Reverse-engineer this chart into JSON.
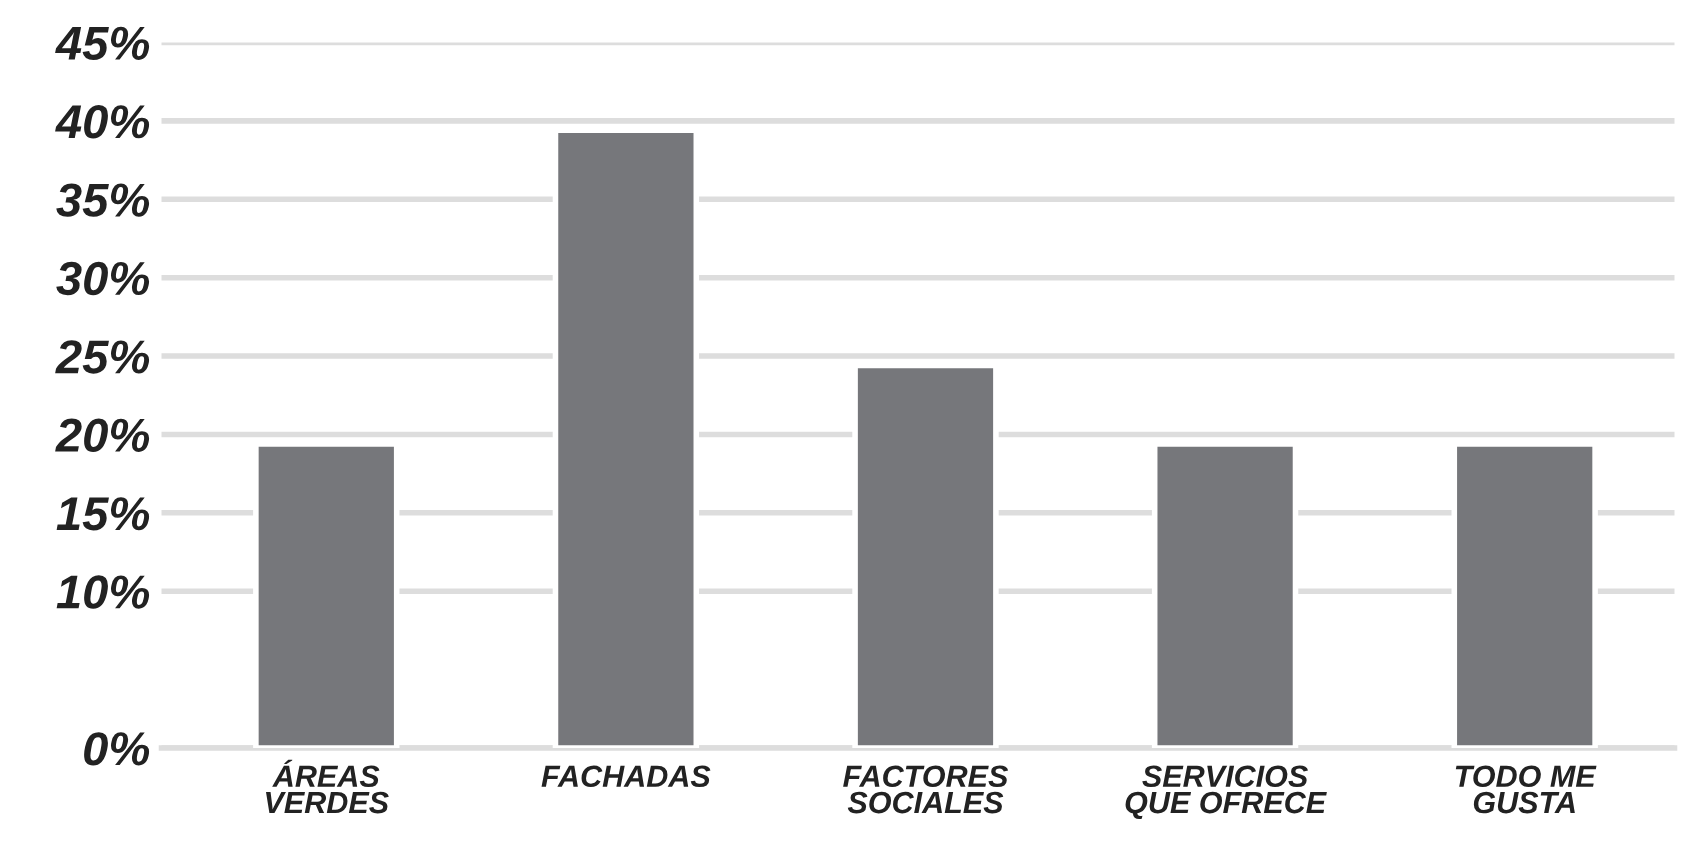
{
  "chart_data": {
    "type": "bar",
    "categories": [
      "ÁREAS\nVERDES",
      "FACHADAS",
      "FACTORES\nSOCIALES",
      "SERVICIOS\nQUE OFRECE",
      "TODO ME\nGUSTA"
    ],
    "values": [
      19.4,
      39.4,
      24.4,
      19.4,
      19.4
    ],
    "color": "#76777b",
    "ylim": [
      0,
      45
    ],
    "yticks": [
      {
        "value": 0,
        "label": "0%"
      },
      {
        "value": 10,
        "label": "10%"
      },
      {
        "value": 15,
        "label": "15%"
      },
      {
        "value": 20,
        "label": "20%"
      },
      {
        "value": 25,
        "label": "25%"
      },
      {
        "value": 30,
        "label": "30%"
      },
      {
        "value": 35,
        "label": "35%"
      },
      {
        "value": 40,
        "label": "40%"
      },
      {
        "value": 45,
        "label": "45%"
      }
    ],
    "grid": "y"
  }
}
